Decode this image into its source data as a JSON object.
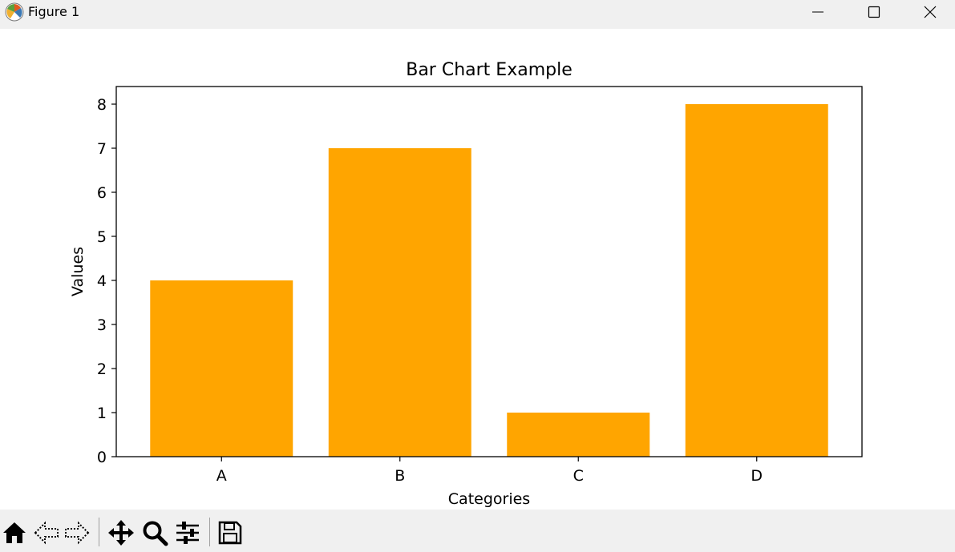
{
  "window": {
    "title": "Figure 1",
    "controls": [
      "minimize",
      "maximize",
      "close"
    ]
  },
  "toolbar": {
    "buttons": [
      "home-icon",
      "back-arrow-icon",
      "forward-arrow-icon",
      "pan-move-icon",
      "zoom-magnifier-icon",
      "configure-subplots-icon",
      "save-floppy-icon"
    ]
  },
  "colors": {
    "bar": "#FFA500",
    "titlebar": "#f0f0f0",
    "toolbar": "#f0f0f0"
  },
  "chart_data": {
    "type": "bar",
    "title": "Bar Chart Example",
    "xlabel": "Categories",
    "ylabel": "Values",
    "categories": [
      "A",
      "B",
      "C",
      "D"
    ],
    "values": [
      4,
      7,
      1,
      8
    ],
    "ylim": [
      0,
      8.4
    ],
    "yticks": [
      0,
      1,
      2,
      3,
      4,
      5,
      6,
      7,
      8
    ],
    "grid": false,
    "bar_color": "#FFA500"
  }
}
